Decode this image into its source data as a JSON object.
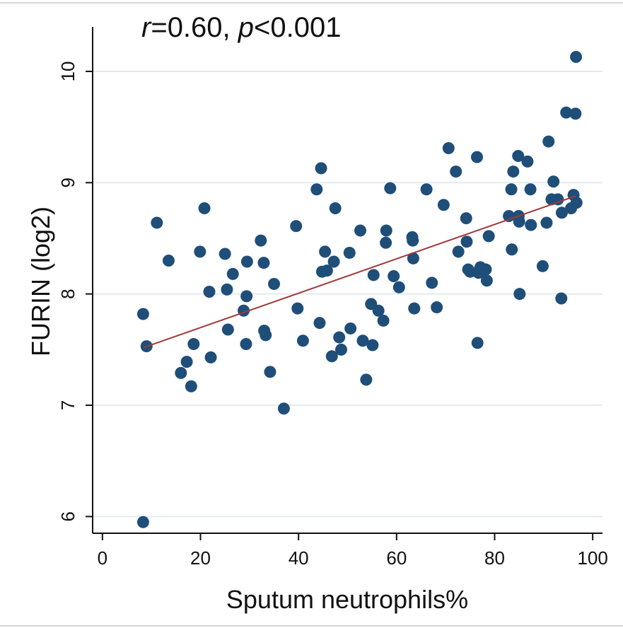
{
  "chart_data": {
    "type": "scatter",
    "title": "",
    "annotation": {
      "r_symbol": "r",
      "r_value": "=0.60, ",
      "p_symbol": "p",
      "p_value": "<0.001"
    },
    "xlabel": "Sputum neutrophils%",
    "ylabel": "FURIN (log2)",
    "xlim": [
      -2,
      102
    ],
    "ylim": [
      5.85,
      10.4
    ],
    "xticks": [
      0,
      20,
      40,
      60,
      80,
      100
    ],
    "xtick_labels": [
      "0",
      "20",
      "40",
      "60",
      "80",
      "100"
    ],
    "yticks": [
      6,
      7,
      8,
      9,
      10
    ],
    "ytick_labels": [
      "6",
      "7",
      "8",
      "9",
      "10"
    ],
    "grid": "horizontal",
    "colors": {
      "points": "#1f4e79",
      "fit_line": "#a0393c",
      "grid": "#e2ebee",
      "axis": "#111111"
    },
    "fit_line": {
      "x": [
        8.5,
        96.5
      ],
      "y": [
        7.52,
        8.88
      ]
    },
    "points": [
      {
        "x": 8.3,
        "y": 5.95
      },
      {
        "x": 8.3,
        "y": 7.82
      },
      {
        "x": 9.0,
        "y": 7.53
      },
      {
        "x": 11.1,
        "y": 8.64
      },
      {
        "x": 13.5,
        "y": 8.3
      },
      {
        "x": 16.0,
        "y": 7.29
      },
      {
        "x": 17.2,
        "y": 7.39
      },
      {
        "x": 18.1,
        "y": 7.17
      },
      {
        "x": 18.6,
        "y": 7.55
      },
      {
        "x": 19.9,
        "y": 8.38
      },
      {
        "x": 20.8,
        "y": 8.77
      },
      {
        "x": 21.8,
        "y": 8.02
      },
      {
        "x": 22.1,
        "y": 7.43
      },
      {
        "x": 25.0,
        "y": 8.36
      },
      {
        "x": 25.4,
        "y": 8.04
      },
      {
        "x": 25.6,
        "y": 7.68
      },
      {
        "x": 26.6,
        "y": 8.18
      },
      {
        "x": 28.8,
        "y": 7.85
      },
      {
        "x": 29.5,
        "y": 8.29
      },
      {
        "x": 29.4,
        "y": 7.98
      },
      {
        "x": 29.3,
        "y": 7.55
      },
      {
        "x": 32.3,
        "y": 8.48
      },
      {
        "x": 32.9,
        "y": 8.28
      },
      {
        "x": 33.0,
        "y": 7.67
      },
      {
        "x": 33.3,
        "y": 7.63
      },
      {
        "x": 34.2,
        "y": 7.3
      },
      {
        "x": 35.0,
        "y": 8.09
      },
      {
        "x": 37.0,
        "y": 6.97
      },
      {
        "x": 39.5,
        "y": 8.61
      },
      {
        "x": 39.8,
        "y": 7.87
      },
      {
        "x": 40.9,
        "y": 7.58
      },
      {
        "x": 43.7,
        "y": 8.94
      },
      {
        "x": 44.3,
        "y": 7.74
      },
      {
        "x": 44.6,
        "y": 9.13
      },
      {
        "x": 44.8,
        "y": 8.2
      },
      {
        "x": 45.4,
        "y": 8.38
      },
      {
        "x": 45.8,
        "y": 8.21
      },
      {
        "x": 46.8,
        "y": 7.44
      },
      {
        "x": 47.2,
        "y": 8.29
      },
      {
        "x": 47.5,
        "y": 8.77
      },
      {
        "x": 48.3,
        "y": 7.61
      },
      {
        "x": 48.7,
        "y": 7.5
      },
      {
        "x": 50.4,
        "y": 8.37
      },
      {
        "x": 50.6,
        "y": 7.69
      },
      {
        "x": 52.6,
        "y": 8.57
      },
      {
        "x": 53.1,
        "y": 7.58
      },
      {
        "x": 53.8,
        "y": 7.23
      },
      {
        "x": 54.8,
        "y": 7.91
      },
      {
        "x": 55.1,
        "y": 7.54
      },
      {
        "x": 55.3,
        "y": 8.17
      },
      {
        "x": 56.3,
        "y": 7.85
      },
      {
        "x": 57.3,
        "y": 7.76
      },
      {
        "x": 57.8,
        "y": 8.46
      },
      {
        "x": 57.9,
        "y": 8.57
      },
      {
        "x": 58.7,
        "y": 8.95
      },
      {
        "x": 59.4,
        "y": 8.16
      },
      {
        "x": 60.5,
        "y": 8.06
      },
      {
        "x": 63.2,
        "y": 8.51
      },
      {
        "x": 63.3,
        "y": 8.48
      },
      {
        "x": 63.4,
        "y": 8.32
      },
      {
        "x": 63.6,
        "y": 7.87
      },
      {
        "x": 66.1,
        "y": 8.94
      },
      {
        "x": 67.2,
        "y": 8.1
      },
      {
        "x": 68.2,
        "y": 7.88
      },
      {
        "x": 69.6,
        "y": 8.8
      },
      {
        "x": 70.6,
        "y": 9.31
      },
      {
        "x": 72.1,
        "y": 9.1
      },
      {
        "x": 72.6,
        "y": 8.38
      },
      {
        "x": 74.2,
        "y": 8.68
      },
      {
        "x": 74.3,
        "y": 8.47
      },
      {
        "x": 74.6,
        "y": 8.22
      },
      {
        "x": 75.0,
        "y": 8.2
      },
      {
        "x": 76.4,
        "y": 9.23
      },
      {
        "x": 76.5,
        "y": 7.56
      },
      {
        "x": 76.7,
        "y": 8.19
      },
      {
        "x": 77.1,
        "y": 8.24
      },
      {
        "x": 78.2,
        "y": 8.22
      },
      {
        "x": 78.4,
        "y": 8.12
      },
      {
        "x": 78.8,
        "y": 8.52
      },
      {
        "x": 82.9,
        "y": 8.7
      },
      {
        "x": 83.4,
        "y": 8.94
      },
      {
        "x": 83.5,
        "y": 8.4
      },
      {
        "x": 83.8,
        "y": 9.1
      },
      {
        "x": 84.8,
        "y": 9.24
      },
      {
        "x": 84.9,
        "y": 8.7
      },
      {
        "x": 85.0,
        "y": 8.65
      },
      {
        "x": 85.1,
        "y": 8.0
      },
      {
        "x": 86.7,
        "y": 9.19
      },
      {
        "x": 87.3,
        "y": 8.94
      },
      {
        "x": 87.4,
        "y": 8.62
      },
      {
        "x": 89.8,
        "y": 8.25
      },
      {
        "x": 90.6,
        "y": 8.64
      },
      {
        "x": 91.0,
        "y": 9.37
      },
      {
        "x": 91.6,
        "y": 8.85
      },
      {
        "x": 92.0,
        "y": 9.01
      },
      {
        "x": 92.9,
        "y": 8.85
      },
      {
        "x": 93.6,
        "y": 7.96
      },
      {
        "x": 93.7,
        "y": 8.73
      },
      {
        "x": 94.6,
        "y": 9.63
      },
      {
        "x": 95.6,
        "y": 8.77
      },
      {
        "x": 96.1,
        "y": 8.89
      },
      {
        "x": 96.5,
        "y": 9.62
      },
      {
        "x": 96.6,
        "y": 10.13
      },
      {
        "x": 96.7,
        "y": 8.82
      }
    ]
  }
}
